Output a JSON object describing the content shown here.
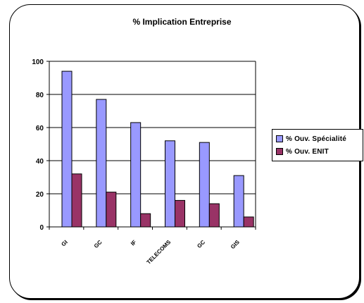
{
  "chart_data": {
    "type": "bar",
    "title": "% Implication Entreprise",
    "categories": [
      "GI",
      "GC",
      "IF",
      "TELECOMS",
      "GC",
      "GIS"
    ],
    "series": [
      {
        "name": "% Ouv. Spécialité",
        "values": [
          94,
          77,
          63,
          52,
          51,
          31
        ],
        "color": "#9999ff"
      },
      {
        "name": "% Ouv. ENIT",
        "values": [
          32,
          21,
          8,
          16,
          14,
          6
        ],
        "color": "#993366"
      }
    ],
    "ylim": [
      0,
      100
    ],
    "yticks": [
      0,
      20,
      40,
      60,
      80,
      100
    ],
    "grid": true,
    "legend": "right"
  }
}
